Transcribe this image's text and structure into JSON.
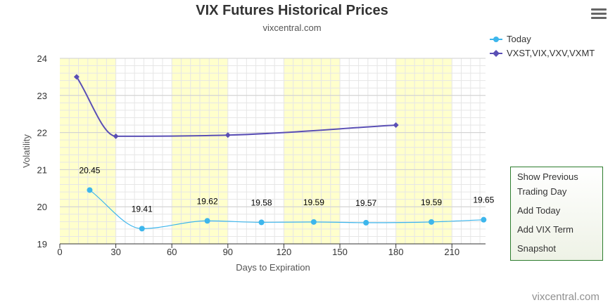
{
  "header": {
    "title": "VIX Futures Historical Prices",
    "subtitle": "vixcentral.com"
  },
  "credits": "vixcentral.com",
  "menu_icon": "hamburger-menu-icon",
  "context_menu": {
    "items": [
      "Show Previous Trading Day",
      "Add Today",
      "Add VIX Term",
      "Snapshot"
    ]
  },
  "chart_data": {
    "type": "line",
    "title": "VIX Futures Historical Prices",
    "subtitle": "vixcentral.com",
    "xlabel": "Days to Expiration",
    "ylabel": "Volatility",
    "xlim": [
      0,
      228
    ],
    "ylim": [
      19,
      24
    ],
    "x_ticks": [
      0,
      30,
      60,
      90,
      120,
      150,
      180,
      210
    ],
    "y_ticks": [
      19,
      20,
      21,
      22,
      23,
      24
    ],
    "grid": true,
    "legend_position": "top-right",
    "shaded_bands": [
      [
        0,
        30
      ],
      [
        60,
        90
      ],
      [
        120,
        150
      ],
      [
        180,
        210
      ]
    ],
    "band_color": "#ffffcc",
    "series": [
      {
        "name": "Today",
        "color": "#3db6ec",
        "marker": "circle",
        "show_data_labels": true,
        "x": [
          16,
          44,
          79,
          108,
          136,
          164,
          199,
          227
        ],
        "values": [
          20.45,
          19.41,
          19.62,
          19.58,
          19.59,
          19.57,
          19.59,
          19.65
        ]
      },
      {
        "name": "VXST,VIX,VXV,VXMT",
        "color": "#5a4fb5",
        "marker": "diamond",
        "show_data_labels": false,
        "x": [
          9,
          30,
          90,
          180
        ],
        "values": [
          23.5,
          21.9,
          21.93,
          22.2
        ]
      }
    ]
  }
}
